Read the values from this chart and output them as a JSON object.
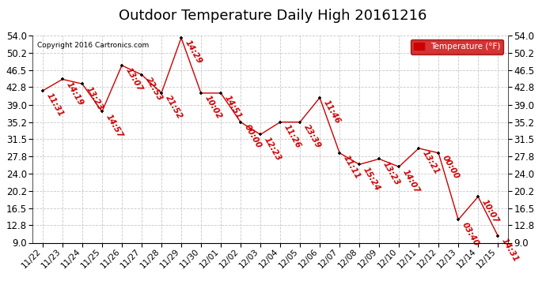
{
  "title": "Outdoor Temperature Daily High 20161216",
  "copyright": "Copyright 2016 Cartronics.com",
  "legend_label": "Temperature (°F)",
  "x_labels": [
    "11/22",
    "11/23",
    "11/24",
    "11/25",
    "11/26",
    "11/27",
    "11/28",
    "11/29",
    "11/30",
    "12/01",
    "12/02",
    "12/03",
    "12/04",
    "12/05",
    "12/06",
    "12/07",
    "12/08",
    "12/09",
    "12/10",
    "12/11",
    "12/12",
    "12/13",
    "12/14",
    "12/15"
  ],
  "y_values": [
    42.0,
    44.5,
    43.5,
    37.5,
    47.5,
    45.5,
    41.5,
    53.5,
    41.5,
    41.5,
    35.2,
    32.5,
    35.2,
    35.2,
    40.5,
    28.5,
    26.0,
    27.2,
    25.5,
    29.5,
    28.5,
    14.0,
    19.0,
    10.5
  ],
  "time_labels": [
    "11:31",
    "14:19",
    "13:23",
    "14:57",
    "13:07",
    "22:53",
    "21:52",
    "14:29",
    "10:02",
    "14:51",
    "00:00",
    "12:23",
    "11:26",
    "23:39",
    "11:46",
    "11:11",
    "15:24",
    "13:23",
    "14:07",
    "13:21",
    "00:00",
    "03:40",
    "10:07",
    "14:31"
  ],
  "ylim": [
    9.0,
    54.0
  ],
  "yticks": [
    9.0,
    12.8,
    16.5,
    20.2,
    24.0,
    27.8,
    31.5,
    35.2,
    39.0,
    42.8,
    46.5,
    50.2,
    54.0
  ],
  "line_color": "#cc0000",
  "marker_color": "#000000",
  "bg_color": "#ffffff",
  "grid_color": "#c8c8c8",
  "title_fontsize": 13,
  "label_fontsize": 8,
  "time_fontsize": 7.5
}
